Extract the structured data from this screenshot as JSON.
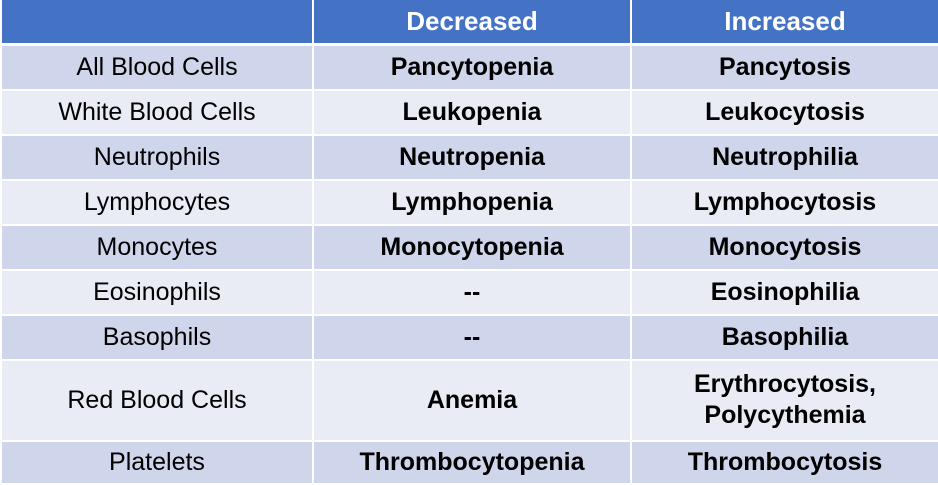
{
  "table": {
    "headers": [
      "",
      "Decreased",
      "Increased"
    ],
    "rows": [
      {
        "category": "All Blood Cells",
        "decreased": "Pancytopenia",
        "increased": "Pancytosis"
      },
      {
        "category": "White Blood Cells",
        "decreased": "Leukopenia",
        "increased": "Leukocytosis"
      },
      {
        "category": "Neutrophils",
        "decreased": "Neutropenia",
        "increased": "Neutrophilia"
      },
      {
        "category": "Lymphocytes",
        "decreased": "Lymphopenia",
        "increased": "Lymphocytosis"
      },
      {
        "category": "Monocytes",
        "decreased": "Monocytopenia",
        "increased": "Monocytosis"
      },
      {
        "category": "Eosinophils",
        "decreased": "--",
        "increased": "Eosinophilia"
      },
      {
        "category": "Basophils",
        "decreased": "--",
        "increased": "Basophilia"
      },
      {
        "category": "Red Blood Cells",
        "decreased": "Anemia",
        "increased_lines": [
          "Erythrocytosis,",
          "Polycythemia"
        ]
      },
      {
        "category": "Platelets",
        "decreased": "Thrombocytopenia",
        "increased": "Thrombocytosis"
      }
    ]
  },
  "colors": {
    "header_bg": "#4472c4",
    "header_text": "#ffffff",
    "row_dark": "#cfd5ea",
    "row_light": "#e9ebf5"
  }
}
